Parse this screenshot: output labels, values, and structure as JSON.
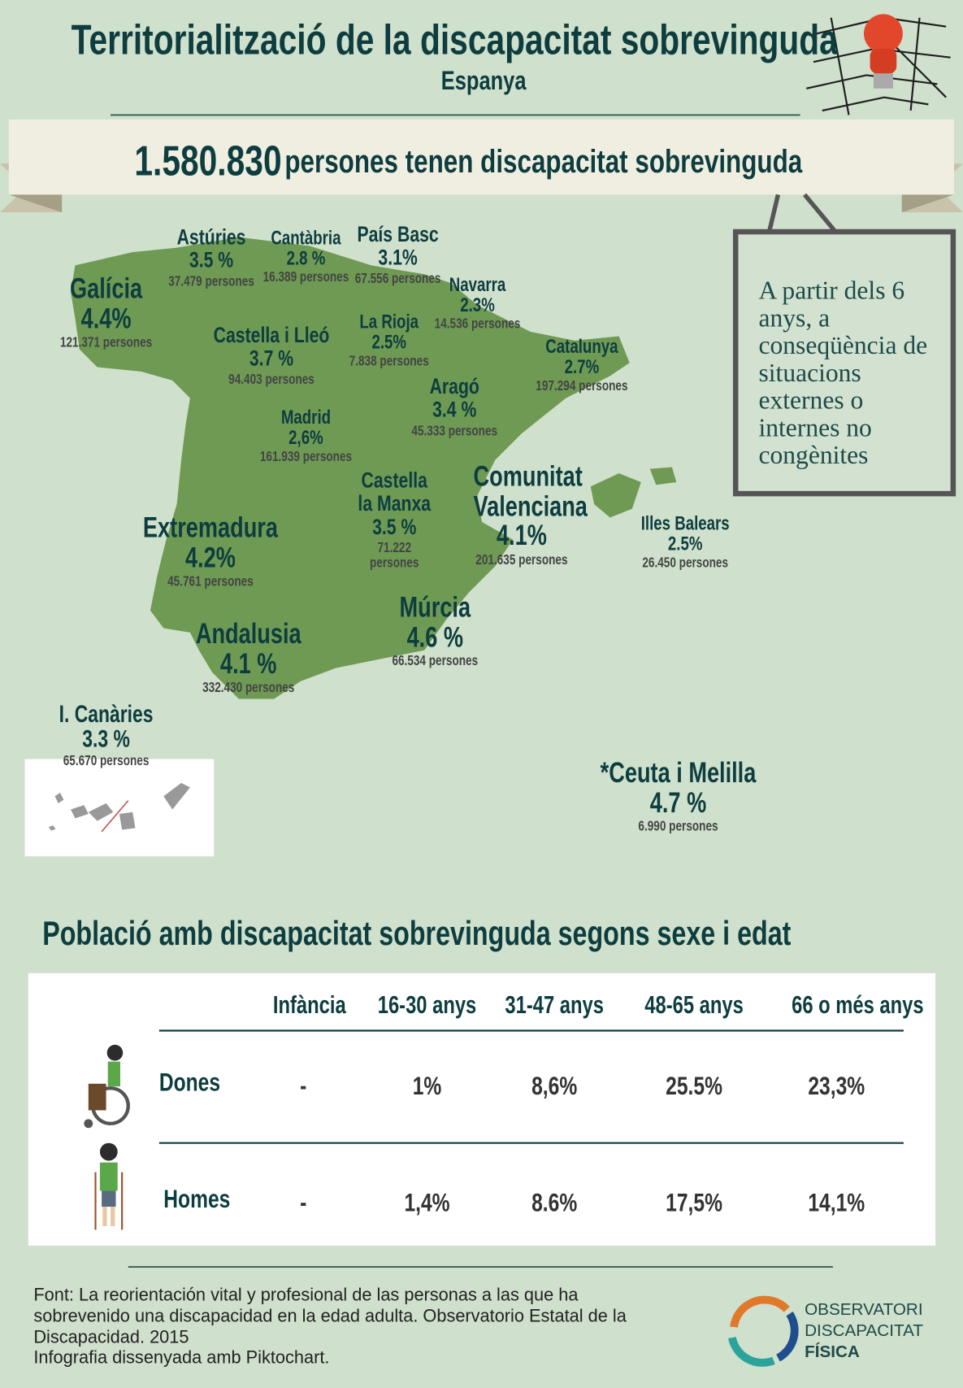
{
  "header": {
    "title": "Territorialització de la discapacitat sobrevinguda",
    "subtitle": "Espanya"
  },
  "banner": {
    "number": "1.580.830",
    "text": "persones tenen discapacitat sobrevinguda"
  },
  "callout": "A partir dels 6 anys, a conseqüència de situacions externes o internes no congènites",
  "regions": [
    {
      "name": "Galícia",
      "percent": "4.4%",
      "people": "121.371 persones"
    },
    {
      "name": "Astúries",
      "percent": "3.5 %",
      "people": "37.479 persones"
    },
    {
      "name": "Cantàbria",
      "percent": "2.8 %",
      "people": "16.389 persones"
    },
    {
      "name": "País Basc",
      "percent": "3.1%",
      "people": "67.556 persones"
    },
    {
      "name": "Navarra",
      "percent": "2.3%",
      "people": "14.536 persones"
    },
    {
      "name": "Castella i Lleó",
      "percent": "3.7 %",
      "people": "94.403 persones"
    },
    {
      "name": "La Rioja",
      "percent": "2.5%",
      "people": "7.838 persones"
    },
    {
      "name": "Catalunya",
      "percent": "2.7%",
      "people": "197.294 persones"
    },
    {
      "name": "Aragó",
      "percent": "3.4 %",
      "people": "45.333 persones"
    },
    {
      "name": "Madrid",
      "percent": "2,6%",
      "people": "161.939 persones"
    },
    {
      "name": "Castella la Manxa",
      "percent": "3.5 %",
      "people": "71.222 persones"
    },
    {
      "name": "Comunitat Valenciana",
      "percent": "4.1%",
      "people": "201.635 persones"
    },
    {
      "name": "Extremadura",
      "percent": "4.2%",
      "people": "45.761 persones"
    },
    {
      "name": "Illes Balears",
      "percent": "2.5%",
      "people": "26.450 persones"
    },
    {
      "name": "Múrcia",
      "percent": "4.6 %",
      "people": "66.534 persones"
    },
    {
      "name": "Andalusia",
      "percent": "4.1 %",
      "people": "332.430 persones"
    },
    {
      "name": "I. Canàries",
      "percent": "3.3 %",
      "people": "65.670 persones"
    },
    {
      "name": "*Ceuta i Melilla",
      "percent": "4.7 %",
      "people": "6.990 persones"
    }
  ],
  "table": {
    "title": "Població amb discapacitat sobrevinguda segons sexe i edat",
    "header": [
      "Infància",
      "16-30 anys",
      "31-47 anys",
      "48-65 anys",
      "66 o més anys"
    ],
    "rows": [
      [
        "Dones",
        "-",
        "1%",
        "8,6%",
        "25.5%",
        "23,3%"
      ],
      [
        "Homes",
        "-",
        "1,4%",
        "8.6%",
        "17,5%",
        "14,1%"
      ]
    ]
  },
  "source": [
    "Font: La reorientación vital y profesional de las personas a las que ha sobrevenido una discapacidad en la edad adulta. Observatorio Estatal de la Discapacidad. 2015",
    "Infografia dissenyada amb Piktochart."
  ],
  "logo": [
    "OBSERVATORI",
    "DISCAPACITAT",
    "FÍSICA"
  ]
}
